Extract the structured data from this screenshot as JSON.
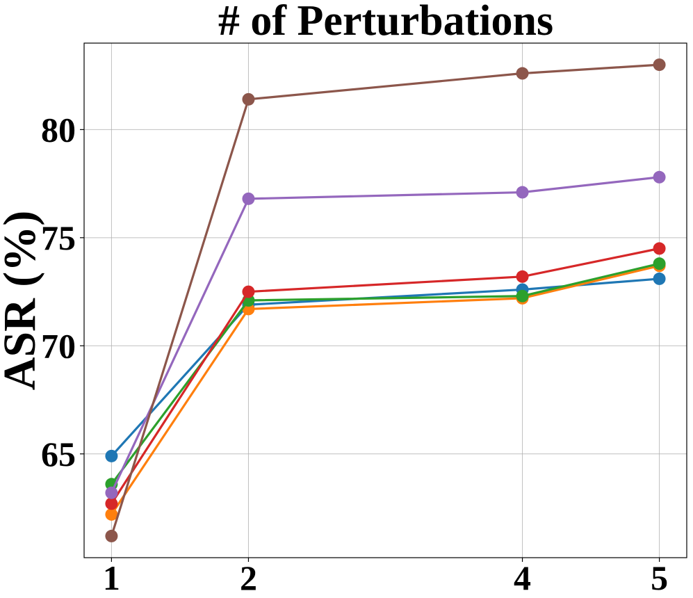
{
  "chart_data": {
    "type": "line",
    "title": "# of Perturbations",
    "xlabel": "",
    "ylabel": "ASR (%)",
    "x": [
      1,
      2,
      4,
      5
    ],
    "x_tick_labels": [
      "1",
      "2",
      "4",
      "5"
    ],
    "xlim": [
      0.8,
      5.2
    ],
    "ylim": [
      60.2,
      84.0
    ],
    "y_ticks": [
      65,
      70,
      75,
      80
    ],
    "y_tick_labels": [
      "65",
      "70",
      "75",
      "80"
    ],
    "grid": true,
    "legend": "none",
    "series": [
      {
        "name": "series-blue",
        "color": "#1f77b4",
        "values": [
          64.9,
          71.9,
          72.6,
          73.1
        ]
      },
      {
        "name": "series-orange",
        "color": "#ff7f0e",
        "values": [
          62.2,
          71.7,
          72.2,
          73.7
        ]
      },
      {
        "name": "series-green",
        "color": "#2ca02c",
        "values": [
          63.6,
          72.1,
          72.3,
          73.8
        ]
      },
      {
        "name": "series-red",
        "color": "#d62728",
        "values": [
          62.7,
          72.5,
          73.2,
          74.5
        ]
      },
      {
        "name": "series-purple",
        "color": "#9467bd",
        "values": [
          63.2,
          76.8,
          77.1,
          77.8
        ]
      },
      {
        "name": "series-brown",
        "color": "#8c564b",
        "values": [
          61.2,
          81.4,
          82.6,
          83.0
        ]
      }
    ]
  }
}
